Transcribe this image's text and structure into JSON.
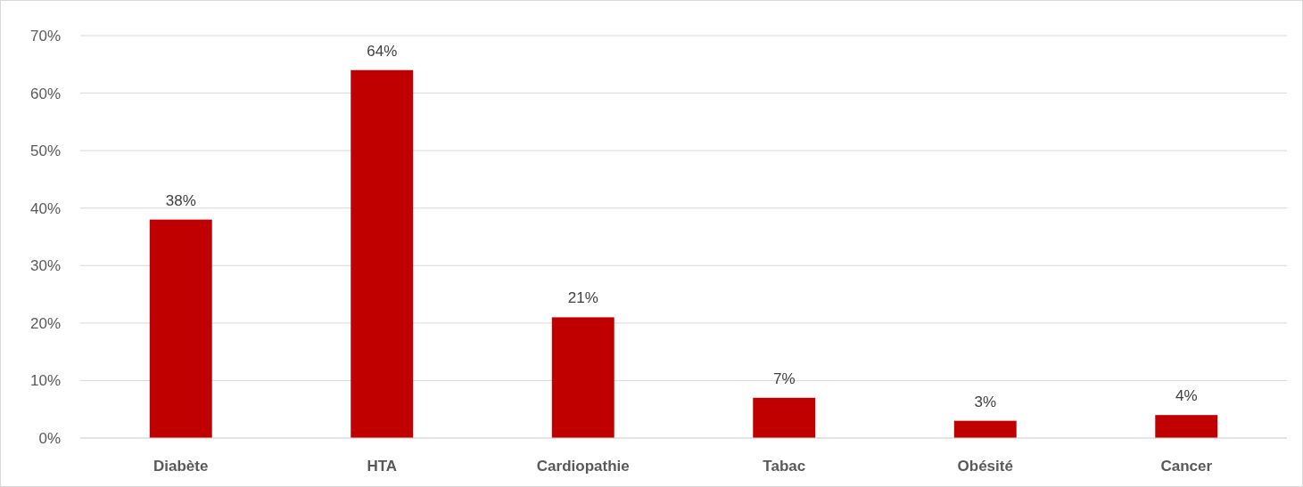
{
  "chart_data": {
    "type": "bar",
    "categories": [
      "Diabète",
      "HTA",
      "Cardiopathie",
      "Tabac",
      "Obésité",
      "Cancer"
    ],
    "values": [
      38,
      64,
      21,
      7,
      3,
      4
    ],
    "color": "#c00000",
    "value_labels": [
      "38%",
      "64%",
      "21%",
      "7%",
      "3%",
      "4%"
    ],
    "ylim": [
      0,
      70
    ],
    "yticks": [
      {
        "value": 0,
        "label": "0%"
      },
      {
        "value": 10,
        "label": "10%"
      },
      {
        "value": 20,
        "label": "20%"
      },
      {
        "value": 30,
        "label": "30%"
      },
      {
        "value": 40,
        "label": "40%"
      },
      {
        "value": 50,
        "label": "50%"
      },
      {
        "value": 60,
        "label": "60%"
      },
      {
        "value": 70,
        "label": "70%"
      }
    ],
    "grid": "y"
  }
}
